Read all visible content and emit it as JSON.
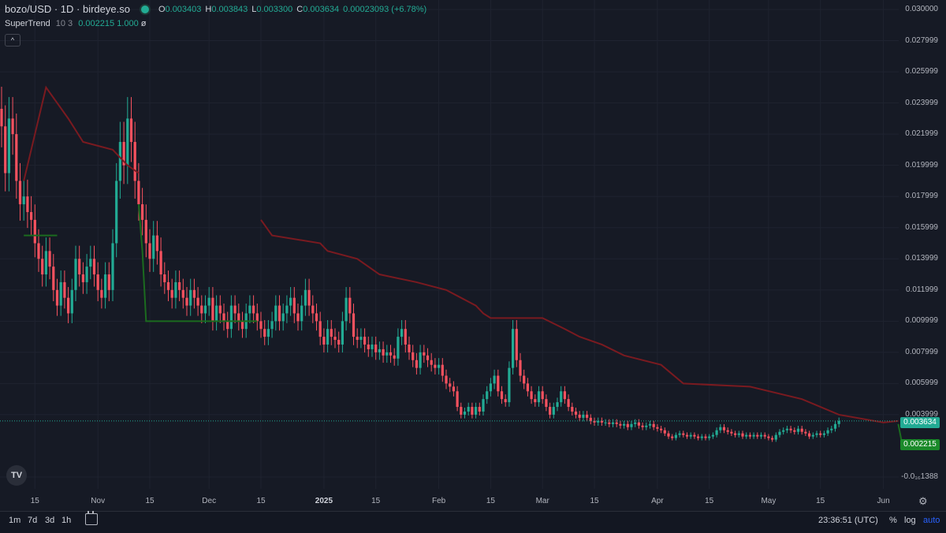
{
  "header": {
    "symbol": "bozo/USD · 1D · birdeye.so",
    "open_key": "O",
    "open": "0.003403",
    "high_key": "H",
    "high": "0.003843",
    "low_key": "L",
    "low": "0.003300",
    "close_key": "C",
    "close": "0.003634",
    "change": "0.00023093 (+6.78%)"
  },
  "indicator": {
    "name": "SuperTrend",
    "params": "10 3",
    "value": "0.002215",
    "factor": "1.000",
    "symbol": "ø"
  },
  "collapse_glyph": "^",
  "logo_text": "TV",
  "price_tags": {
    "last": "0.003634",
    "supertrend": "0.002215"
  },
  "bottom": {
    "ranges": [
      "1m",
      "7d",
      "3d",
      "1h"
    ],
    "clock": "23:36:51 (UTC)",
    "percent": "%",
    "log": "log",
    "auto": "auto"
  },
  "colors": {
    "up": "#22ab94",
    "down": "#f7525f",
    "st_down": "#7a1a20",
    "st_up": "#1b6b1f",
    "background": "#161a25"
  },
  "chart_data": {
    "type": "candlestick",
    "x_start": "2024-10-06",
    "interval": "1D",
    "y_axis": {
      "labels": [
        "0.030000",
        "0.027999",
        "0.025999",
        "0.023999",
        "0.021999",
        "0.019999",
        "0.017999",
        "0.015999",
        "0.013999",
        "0.011999",
        "0.009999",
        "0.007999",
        "0.005999",
        "0.003999",
        "-0.0₁₆1388"
      ],
      "ylim": [
        0,
        0.03
      ]
    },
    "x_axis": {
      "labels": [
        {
          "text": "15",
          "date": "2024-10-15"
        },
        {
          "text": "Nov",
          "date": "2024-11-01"
        },
        {
          "text": "15",
          "date": "2024-11-15"
        },
        {
          "text": "Dec",
          "date": "2024-12-01"
        },
        {
          "text": "15",
          "date": "2024-12-15"
        },
        {
          "text": "2025",
          "date": "2025-01-01",
          "bold": true
        },
        {
          "text": "15",
          "date": "2025-01-15"
        },
        {
          "text": "Feb",
          "date": "2025-02-01"
        },
        {
          "text": "15",
          "date": "2025-02-15"
        },
        {
          "text": "Mar",
          "date": "2025-03-01"
        },
        {
          "text": "15",
          "date": "2025-03-15"
        },
        {
          "text": "Apr",
          "date": "2025-04-01"
        },
        {
          "text": "15",
          "date": "2025-04-15"
        },
        {
          "text": "May",
          "date": "2025-05-01"
        },
        {
          "text": "15",
          "date": "2025-05-15"
        },
        {
          "text": "Jun",
          "date": "2025-06-01"
        }
      ]
    },
    "close": [
      0.0225,
      0.0195,
      0.023,
      0.022,
      0.019,
      0.0175,
      0.018,
      0.017,
      0.0165,
      0.015,
      0.014,
      0.013,
      0.0145,
      0.0135,
      0.012,
      0.011,
      0.0125,
      0.0115,
      0.0105,
      0.012,
      0.014,
      0.013,
      0.0125,
      0.0135,
      0.014,
      0.013,
      0.012,
      0.0115,
      0.013,
      0.012,
      0.015,
      0.019,
      0.0215,
      0.02,
      0.023,
      0.0215,
      0.019,
      0.0175,
      0.0165,
      0.015,
      0.014,
      0.0155,
      0.0145,
      0.013,
      0.0125,
      0.012,
      0.0115,
      0.0125,
      0.012,
      0.0115,
      0.011,
      0.012,
      0.0115,
      0.011,
      0.0105,
      0.011,
      0.0115,
      0.01,
      0.011,
      0.0105,
      0.01,
      0.0095,
      0.011,
      0.0105,
      0.01,
      0.0095,
      0.0105,
      0.011,
      0.0105,
      0.01,
      0.0095,
      0.009,
      0.0095,
      0.01,
      0.011,
      0.01,
      0.0105,
      0.011,
      0.0115,
      0.0105,
      0.01,
      0.011,
      0.012,
      0.011,
      0.0105,
      0.01,
      0.009,
      0.0085,
      0.0095,
      0.009,
      0.0088,
      0.0085,
      0.01,
      0.0115,
      0.0105,
      0.009,
      0.0088,
      0.009,
      0.0085,
      0.0082,
      0.0085,
      0.008,
      0.0082,
      0.0078,
      0.008,
      0.0078,
      0.0076,
      0.009,
      0.0095,
      0.0085,
      0.008,
      0.0075,
      0.007,
      0.008,
      0.0078,
      0.0075,
      0.0072,
      0.007,
      0.0072,
      0.0065,
      0.006,
      0.0058,
      0.0055,
      0.0045,
      0.004,
      0.0042,
      0.0045,
      0.004,
      0.0045,
      0.0042,
      0.005,
      0.0055,
      0.006,
      0.0065,
      0.0055,
      0.005,
      0.0048,
      0.007,
      0.0095,
      0.0075,
      0.0065,
      0.006,
      0.0055,
      0.005,
      0.0048,
      0.0055,
      0.005,
      0.0045,
      0.004,
      0.0045,
      0.0048,
      0.0055,
      0.005,
      0.0045,
      0.0042,
      0.004,
      0.0038,
      0.004,
      0.0038,
      0.0036,
      0.0035,
      0.0036,
      0.0035,
      0.0035,
      0.0034,
      0.0035,
      0.0034,
      0.0033,
      0.0034,
      0.0032,
      0.0034,
      0.0035,
      0.0033,
      0.0032,
      0.0033,
      0.0034,
      0.0032,
      0.0031,
      0.003,
      0.0028,
      0.0026,
      0.0025,
      0.0027,
      0.0028,
      0.0027,
      0.0026,
      0.0027,
      0.0026,
      0.0025,
      0.0026,
      0.0025,
      0.0026,
      0.0027,
      0.003,
      0.0032,
      0.003,
      0.0029,
      0.0028,
      0.0027,
      0.0028,
      0.0026,
      0.0027,
      0.0026,
      0.0027,
      0.0026,
      0.0027,
      0.0026,
      0.0025,
      0.0024,
      0.0027,
      0.0029,
      0.003,
      0.0031,
      0.003,
      0.0029,
      0.0031,
      0.0029,
      0.0028,
      0.0026,
      0.0027,
      0.0028,
      0.0027,
      0.0028,
      0.003,
      0.0031,
      0.0034,
      0.0036
    ],
    "supertrend": {
      "down_segments": [
        {
          "from": "2024-10-12",
          "to": "2024-11-10",
          "points": [
            [
              0,
              0.019
            ],
            [
              6,
              0.025
            ],
            [
              9,
              0.024
            ],
            [
              12,
              0.023
            ],
            [
              16,
              0.0215
            ],
            [
              24,
              0.021
            ],
            [
              26,
              0.0205
            ],
            [
              28,
              0.02
            ],
            [
              31,
              0.0195
            ]
          ]
        },
        {
          "from": "2024-12-09",
          "to": "2025-05-26",
          "points": [
            [
              64,
              0.0165
            ],
            [
              67,
              0.0155
            ],
            [
              80,
              0.015
            ],
            [
              82,
              0.0145
            ],
            [
              90,
              0.014
            ],
            [
              96,
              0.013
            ],
            [
              106,
              0.0125
            ],
            [
              114,
              0.012
            ],
            [
              118,
              0.0115
            ],
            [
              122,
              0.011
            ],
            [
              124,
              0.0105
            ],
            [
              126,
              0.0102
            ],
            [
              140,
              0.0102
            ],
            [
              146,
              0.0095
            ],
            [
              150,
              0.009
            ],
            [
              156,
              0.0085
            ],
            [
              162,
              0.0078
            ],
            [
              172,
              0.0072
            ],
            [
              178,
              0.006
            ],
            [
              196,
              0.0058
            ],
            [
              210,
              0.005
            ],
            [
              220,
              0.004
            ],
            [
              232,
              0.0035
            ],
            [
              236,
              0.0036
            ]
          ]
        }
      ],
      "up_segments": [
        {
          "points": [
            [
              0,
              0.0155
            ],
            [
              2,
              0.0155
            ],
            [
              5,
              0.0155
            ],
            [
              7,
              0.0155
            ],
            [
              8,
              0.0155
            ],
            [
              9,
              0.0155
            ]
          ]
        },
        {
          "points": [
            [
              31,
              0.0175
            ],
            [
              32,
              0.0145
            ],
            [
              33,
              0.01
            ],
            [
              63,
              0.01
            ]
          ]
        },
        {
          "points": [
            [
              236,
              0.0034
            ],
            [
              237,
              0.0022
            ]
          ]
        }
      ]
    }
  }
}
